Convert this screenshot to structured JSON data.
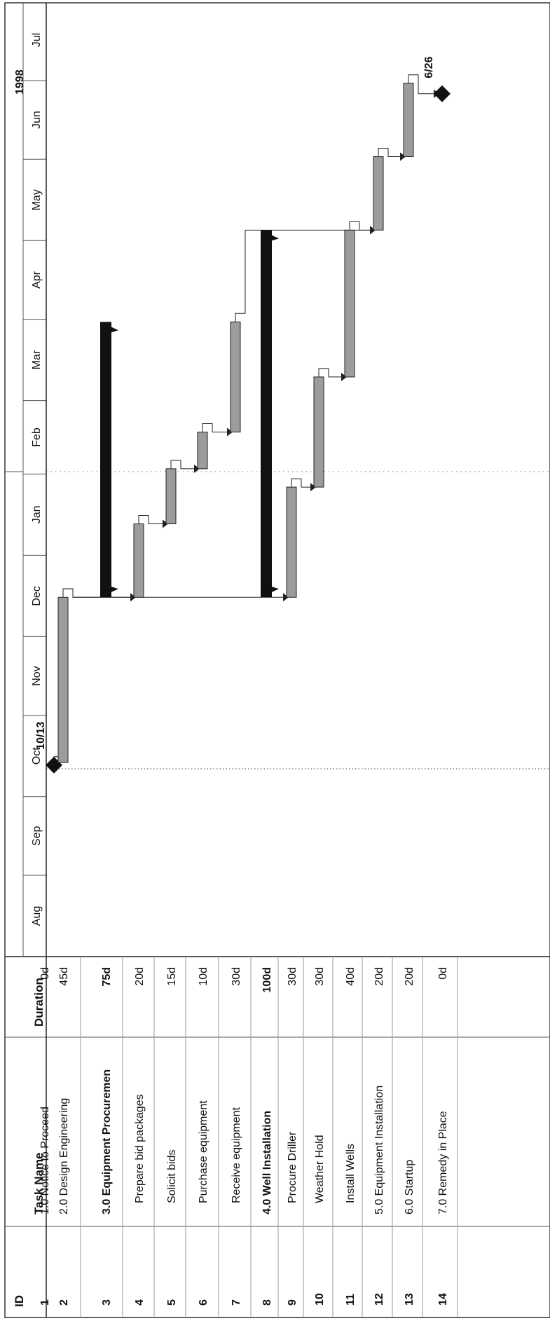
{
  "columns": {
    "id": "ID",
    "task": "Task Name",
    "duration": "Duration"
  },
  "chart_data": {
    "type": "gantt",
    "year_label": "1998",
    "months": [
      "Aug",
      "Sep",
      "Oct",
      "Nov",
      "Dec",
      "Jan",
      "Feb",
      "Mar",
      "Apr",
      "May",
      "Jun",
      "Jul"
    ],
    "tasks": [
      {
        "id": "1",
        "name": "1.0  Notice to Proceed",
        "duration": "0d",
        "kind": "milestone",
        "summary": false,
        "indent": false,
        "start": "1997-10-13",
        "end": "1997-10-13",
        "label": "10/13"
      },
      {
        "id": "2",
        "name": "2.0  Design Engineering",
        "duration": "45d",
        "kind": "task",
        "summary": false,
        "indent": false,
        "start": "1997-10-14",
        "end": "1997-12-15"
      },
      {
        "id": "3",
        "name": "3.0  Equipment Procuremen",
        "duration": "75d",
        "kind": "summary",
        "summary": true,
        "indent": false,
        "start": "1997-12-16",
        "end": "1998-03-30"
      },
      {
        "id": "4",
        "name": "Prepare bid packages",
        "duration": "20d",
        "kind": "task",
        "summary": false,
        "indent": true,
        "start": "1997-12-16",
        "end": "1998-01-12"
      },
      {
        "id": "5",
        "name": "Solicit bids",
        "duration": "15d",
        "kind": "task",
        "summary": false,
        "indent": true,
        "start": "1998-01-13",
        "end": "1998-02-02"
      },
      {
        "id": "6",
        "name": "Purchase equipment",
        "duration": "10d",
        "kind": "task",
        "summary": false,
        "indent": true,
        "start": "1998-02-03",
        "end": "1998-02-16"
      },
      {
        "id": "7",
        "name": "Receive equipment",
        "duration": "30d",
        "kind": "task",
        "summary": false,
        "indent": true,
        "start": "1998-02-17",
        "end": "1998-03-30"
      },
      {
        "id": "8",
        "name": "4.0  Well Installation",
        "duration": "100d",
        "kind": "summary",
        "summary": true,
        "indent": false,
        "start": "1997-12-16",
        "end": "1998-05-04"
      },
      {
        "id": "9",
        "name": "Procure Driller",
        "duration": "30d",
        "kind": "task",
        "summary": false,
        "indent": true,
        "start": "1997-12-16",
        "end": "1998-01-26"
      },
      {
        "id": "10",
        "name": "Weather Hold",
        "duration": "30d",
        "kind": "task",
        "summary": false,
        "indent": true,
        "start": "1998-01-27",
        "end": "1998-03-09"
      },
      {
        "id": "11",
        "name": "Install Wells",
        "duration": "40d",
        "kind": "task",
        "summary": false,
        "indent": true,
        "start": "1998-03-10",
        "end": "1998-05-04"
      },
      {
        "id": "12",
        "name": "5.0  Equipment Installation",
        "duration": "20d",
        "kind": "task",
        "summary": false,
        "indent": false,
        "start": "1998-05-05",
        "end": "1998-06-01"
      },
      {
        "id": "13",
        "name": "6.0  Startup",
        "duration": "20d",
        "kind": "task",
        "summary": false,
        "indent": false,
        "start": "1998-06-02",
        "end": "1998-06-29"
      },
      {
        "id": "14",
        "name": "7.0  Remedy in Place",
        "duration": "0d",
        "kind": "milestone",
        "summary": false,
        "indent": false,
        "start": "1998-06-26",
        "end": "1998-06-26",
        "label": "6/26"
      }
    ]
  },
  "colors": {
    "bar_fill": "#9c9c9c",
    "summary_fill": "#111111",
    "line": "#222222",
    "grid": "#555555"
  }
}
